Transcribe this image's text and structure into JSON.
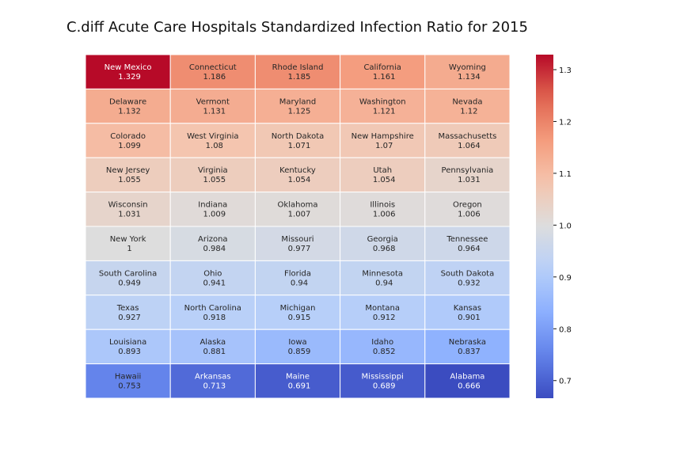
{
  "chart_data": {
    "type": "heatmap",
    "title": "C.diff Acute Care Hospitals Standardized Infection Ratio for 2015",
    "xlabel": "",
    "ylabel": "",
    "rows": 10,
    "cols": 5,
    "cells": [
      [
        {
          "state": "New Mexico",
          "value": 1.329
        },
        {
          "state": "Connecticut",
          "value": 1.186
        },
        {
          "state": "Rhode Island",
          "value": 1.185
        },
        {
          "state": "California",
          "value": 1.161
        },
        {
          "state": "Wyoming",
          "value": 1.134
        }
      ],
      [
        {
          "state": "Delaware",
          "value": 1.132
        },
        {
          "state": "Vermont",
          "value": 1.131
        },
        {
          "state": "Maryland",
          "value": 1.125
        },
        {
          "state": "Washington",
          "value": 1.121
        },
        {
          "state": "Nevada",
          "value": 1.12
        }
      ],
      [
        {
          "state": "Colorado",
          "value": 1.099
        },
        {
          "state": "West Virginia",
          "value": 1.08
        },
        {
          "state": "North Dakota",
          "value": 1.071
        },
        {
          "state": "New Hampshire",
          "value": 1.07
        },
        {
          "state": "Massachusetts",
          "value": 1.064
        }
      ],
      [
        {
          "state": "New Jersey",
          "value": 1.055
        },
        {
          "state": "Virginia",
          "value": 1.055
        },
        {
          "state": "Kentucky",
          "value": 1.054
        },
        {
          "state": "Utah",
          "value": 1.054
        },
        {
          "state": "Pennsylvania",
          "value": 1.031
        }
      ],
      [
        {
          "state": "Wisconsin",
          "value": 1.031
        },
        {
          "state": "Indiana",
          "value": 1.009
        },
        {
          "state": "Oklahoma",
          "value": 1.007
        },
        {
          "state": "Illinois",
          "value": 1.006
        },
        {
          "state": "Oregon",
          "value": 1.006
        }
      ],
      [
        {
          "state": "New York",
          "value": 1
        },
        {
          "state": "Arizona",
          "value": 0.984
        },
        {
          "state": "Missouri",
          "value": 0.977
        },
        {
          "state": "Georgia",
          "value": 0.968
        },
        {
          "state": "Tennessee",
          "value": 0.964
        }
      ],
      [
        {
          "state": "South Carolina",
          "value": 0.949
        },
        {
          "state": "Ohio",
          "value": 0.941
        },
        {
          "state": "Florida",
          "value": 0.94
        },
        {
          "state": "Minnesota",
          "value": 0.94
        },
        {
          "state": "South Dakota",
          "value": 0.932
        }
      ],
      [
        {
          "state": "Texas",
          "value": 0.927
        },
        {
          "state": "North Carolina",
          "value": 0.918
        },
        {
          "state": "Michigan",
          "value": 0.915
        },
        {
          "state": "Montana",
          "value": 0.912
        },
        {
          "state": "Kansas",
          "value": 0.901
        }
      ],
      [
        {
          "state": "Louisiana",
          "value": 0.893
        },
        {
          "state": "Alaska",
          "value": 0.881
        },
        {
          "state": "Iowa",
          "value": 0.859
        },
        {
          "state": "Idaho",
          "value": 0.852
        },
        {
          "state": "Nebraska",
          "value": 0.837
        }
      ],
      [
        {
          "state": "Hawaii",
          "value": 0.753
        },
        {
          "state": "Arkansas",
          "value": 0.713
        },
        {
          "state": "Maine",
          "value": 0.691
        },
        {
          "state": "Mississippi",
          "value": 0.689
        },
        {
          "state": "Alabama",
          "value": 0.666
        }
      ]
    ],
    "colorbar": {
      "colormap": "coolwarm",
      "vmin": 0.666,
      "vmax": 1.329,
      "center": 1.0,
      "ticks": [
        0.7,
        0.8,
        0.9,
        1.0,
        1.1,
        1.2,
        1.3
      ],
      "tick_labels": [
        "0.7",
        "0.8",
        "0.9",
        "1.0",
        "1.1",
        "1.2",
        "1.3"
      ]
    },
    "grid": false,
    "legend": "right"
  }
}
